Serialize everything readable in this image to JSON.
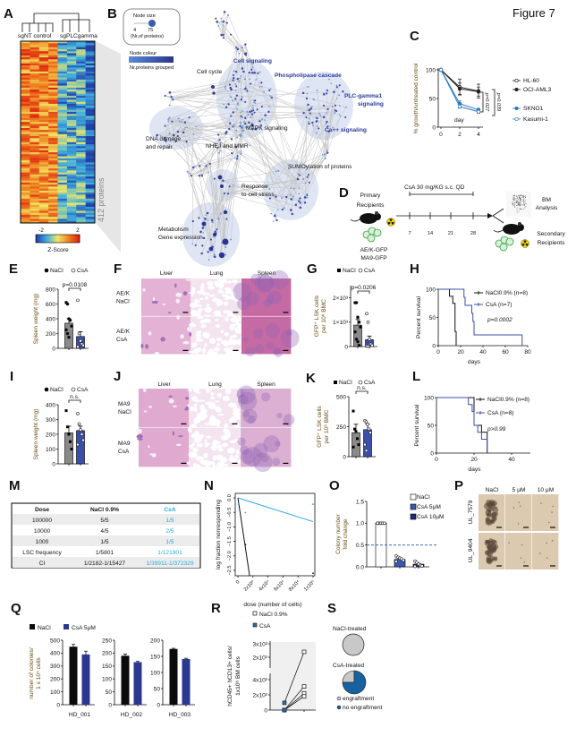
{
  "figure_title": "Figure 7",
  "panel_labels": [
    "A",
    "B",
    "C",
    "D",
    "E",
    "F",
    "G",
    "H",
    "I",
    "J",
    "K",
    "L",
    "M",
    "N",
    "O",
    "P",
    "Q",
    "R",
    "S"
  ],
  "A": {
    "groups": [
      "sgNT control",
      "sgPLCgamma"
    ],
    "side_label": "412 proteins",
    "colorbar": {
      "min": "-2",
      "max": "2",
      "label": "Z-Score"
    }
  },
  "B": {
    "legend": {
      "size_title": "Node size",
      "size_min": "4",
      "size_max": "75",
      "size_caption": "(Nr.of proteins)",
      "colour_title": "Node colour",
      "colour_caption": "Nr.proteins grouped"
    },
    "clusters": [
      {
        "lines": [
          "Cell signaling"
        ],
        "highlight": true
      },
      {
        "lines": [
          "Cell cycle"
        ],
        "highlight": false
      },
      {
        "lines": [
          "Phospholipase cascade"
        ],
        "highlight": true
      },
      {
        "lines": [
          "PLC-gamma1",
          "signaling"
        ],
        "highlight": true
      },
      {
        "lines": [
          "MAPK signaling"
        ],
        "highlight": false
      },
      {
        "lines": [
          "Ca++ signaling"
        ],
        "highlight": true
      },
      {
        "lines": [
          "DNA damage",
          "and repair"
        ],
        "highlight": false
      },
      {
        "lines": [
          "NHEJ and MMR"
        ],
        "highlight": false
      },
      {
        "lines": [
          "SUMOylation of proteins"
        ],
        "highlight": false
      },
      {
        "lines": [
          "Response",
          "to cell stress"
        ],
        "highlight": false
      },
      {
        "lines": [
          "Metabolism",
          "Gene expression"
        ],
        "highlight": false
      }
    ]
  },
  "D": {
    "treatment": "CsA 30 mg/KG s.c. QD",
    "primary": [
      "Primary",
      "Recipients"
    ],
    "days": [
      "7",
      "14",
      "21",
      "28"
    ],
    "bm": [
      "BM",
      "Analysis"
    ],
    "secondary": [
      "Secondary",
      "Recipients"
    ],
    "models": [
      "AE/K-GFP",
      "MA9-GFP"
    ]
  },
  "F": {
    "columns": [
      "Liver",
      "Lung",
      "Spleen"
    ],
    "rows": [
      [
        "AE/K",
        "NaCl"
      ],
      [
        "AE/K",
        "CsA"
      ]
    ]
  },
  "J": {
    "columns": [
      "Liver",
      "Lung",
      "Spleen"
    ],
    "rows": [
      [
        "MA9",
        "NaCl"
      ],
      [
        "MA9",
        "CsA"
      ]
    ]
  },
  "M": {
    "headers": [
      "Dose",
      "NaCl 0.9%",
      "CsA"
    ],
    "rows": [
      [
        "100000",
        "5/5",
        "1/5"
      ],
      [
        "10000",
        "4/5",
        "2/5"
      ],
      [
        "1000",
        "1/5",
        "1/5"
      ],
      [
        "LSC frequency",
        "1/5801",
        "1/121901"
      ],
      [
        "CI",
        "1/2182-1/15427",
        "1/39911-1/372329"
      ]
    ],
    "csa_color": "#29a9e0"
  },
  "P": {
    "columns": [
      "NaCl",
      "5 µM",
      "10 µM"
    ],
    "rows": [
      "UL_7579",
      "UL_9404"
    ]
  },
  "chart_data": [
    {
      "id": "C",
      "type": "line",
      "title": "",
      "xlabel": "day",
      "ylabel": [
        "% growth/untreated control"
      ],
      "x": [
        0,
        2,
        4
      ],
      "xlim": [
        0,
        4
      ],
      "ylim": [
        0,
        100
      ],
      "xticks": [
        0,
        2,
        4
      ],
      "xtick_labels": [
        "0",
        "2",
        "4"
      ],
      "yticks": [
        0,
        50,
        100
      ],
      "ytick_labels": [
        "0",
        "50",
        "100"
      ],
      "series": [
        {
          "name": "HL-60",
          "values": [
            100,
            70,
            63
          ],
          "err": [
            0,
            14,
            12
          ],
          "color": "#222222",
          "marker": "open"
        },
        {
          "name": "OCI-AML3",
          "values": [
            100,
            67,
            62
          ],
          "err": [
            0,
            10,
            8
          ],
          "color": "#222222",
          "marker": "filled"
        },
        {
          "name": "SKNO1",
          "values": [
            100,
            41,
            30
          ],
          "err": [
            0,
            5,
            3
          ],
          "color": "#2a78c0",
          "marker": "filled"
        },
        {
          "name": "Kasumi-1",
          "values": [
            100,
            36,
            27
          ],
          "err": [
            0,
            3,
            3
          ],
          "color": "#2a78c0",
          "marker": "open"
        }
      ],
      "annotations": [
        "p=0.027",
        "p=0.039"
      ]
    },
    {
      "id": "E",
      "type": "bar",
      "ylabel": [
        "Spleen weight (mg)"
      ],
      "ylim": [
        0,
        800
      ],
      "yticks": [
        0,
        200,
        400,
        600,
        800
      ],
      "ytick_labels": [
        "0",
        "200",
        "400",
        "600",
        "800"
      ],
      "annotation": "p=0.0108",
      "series": [
        {
          "name": "NaCl",
          "mean": 340,
          "sem": 60,
          "points": [
            620,
            600,
            400,
            380,
            300,
            250,
            200,
            150
          ],
          "color": "#8a8a8a",
          "point": "filled",
          "legend_marker": "circle-filled"
        },
        {
          "name": "CsA",
          "mean": 160,
          "sem": 65,
          "points": [
            650,
            200,
            100,
            60,
            40,
            20
          ],
          "color": "#3b4fa8",
          "point": "open",
          "legend_marker": "circle-open"
        }
      ]
    },
    {
      "id": "G",
      "type": "bar",
      "ylabel": [
        "GFP⁺ LSK cells",
        "per 10⁶ BMC"
      ],
      "ylim": [
        0,
        2500
      ],
      "yticks": [
        0,
        1000,
        2000
      ],
      "ytick_labels": [
        "0",
        "1×10³",
        "2×10³"
      ],
      "annotation": "p=0.0206",
      "series": [
        {
          "name": "NaCl",
          "mean": 880,
          "sem": 230,
          "points": [
            1800,
            1800,
            1200,
            1000,
            800,
            600,
            300,
            200,
            50
          ],
          "color": "#8a8a8a",
          "point": "filled",
          "legend_marker": "square-filled"
        },
        {
          "name": "CsA",
          "mean": 280,
          "sem": 150,
          "points": [
            1350,
            1000,
            300,
            100,
            50,
            20,
            10
          ],
          "color": "#3b4fa8",
          "point": "open",
          "legend_marker": "circle-open"
        }
      ]
    },
    {
      "id": "H",
      "type": "line",
      "subtype": "survival",
      "xlabel": "days",
      "ylabel": [
        "Percent survival"
      ],
      "xlim": [
        0,
        80
      ],
      "ylim": [
        0,
        100
      ],
      "xticks": [
        0,
        20,
        40,
        60,
        80
      ],
      "xtick_labels": [
        "0",
        "20",
        "40",
        "60",
        "80"
      ],
      "yticks": [
        0,
        50,
        100
      ],
      "ytick_labels": [
        "0",
        "50",
        "100"
      ],
      "annotation": "p=0.0002",
      "series": [
        {
          "name": "NaCl0.9% (n=8)",
          "color": "#111111",
          "steps": [
            [
              0,
              100
            ],
            [
              10,
              87.5
            ],
            [
              13,
              75
            ],
            [
              15,
              25
            ],
            [
              16,
              0
            ]
          ]
        },
        {
          "name": "CsA (n=7)",
          "color": "#3b4fa8",
          "steps": [
            [
              0,
              100
            ],
            [
              23,
              85.7
            ],
            [
              24,
              71.4
            ],
            [
              30,
              57.1
            ],
            [
              31,
              42.9
            ],
            [
              32,
              19
            ],
            [
              75,
              0
            ]
          ]
        }
      ]
    },
    {
      "id": "I",
      "type": "bar",
      "ylabel": [
        "Spleen weight (mg)"
      ],
      "ylim": [
        0,
        400
      ],
      "yticks": [
        0,
        100,
        200,
        300,
        400
      ],
      "ytick_labels": [
        "0",
        "100",
        "200",
        "300",
        "400"
      ],
      "annotation": "n.s.",
      "series": [
        {
          "name": "NaCl",
          "mean": 210,
          "sem": 45,
          "points": [
            360,
            250,
            200,
            150,
            100
          ],
          "color": "#8a8a8a",
          "point": "square",
          "legend_marker": "circle-filled"
        },
        {
          "name": "CsA",
          "mean": 225,
          "sem": 30,
          "points": [
            340,
            270,
            230,
            200,
            160,
            130
          ],
          "color": "#3b4fa8",
          "point": "open",
          "legend_marker": "circle-open"
        }
      ]
    },
    {
      "id": "K",
      "type": "bar",
      "ylabel": [
        "GFP⁺ LSK cells",
        "per 10⁶ BMC"
      ],
      "ylim": [
        0,
        500
      ],
      "yticks": [
        0,
        250,
        500
      ],
      "ytick_labels": [
        "0",
        "250",
        "500"
      ],
      "annotation": "n.s.",
      "series": [
        {
          "name": "NaCl",
          "mean": 200,
          "sem": 70,
          "points": [
            380,
            230,
            210,
            150,
            100,
            80
          ],
          "color": "#8a8a8a",
          "point": "square",
          "legend_marker": "square-filled"
        },
        {
          "name": "CsA",
          "mean": 225,
          "sem": 45,
          "points": [
            300,
            290,
            270,
            230,
            200,
            100,
            50
          ],
          "color": "#3b4fa8",
          "point": "open",
          "legend_marker": "circle-open"
        }
      ]
    },
    {
      "id": "L",
      "type": "line",
      "subtype": "survival",
      "xlabel": "days",
      "ylabel": [
        "Percent survival"
      ],
      "xlim": [
        0,
        50
      ],
      "ylim": [
        0,
        100
      ],
      "xticks": [
        0,
        20,
        40
      ],
      "xtick_labels": [
        "0",
        "20",
        "40"
      ],
      "yticks": [
        0,
        50,
        100
      ],
      "ytick_labels": [
        "0",
        "50",
        "100"
      ],
      "annotation": "p>0.99",
      "series": [
        {
          "name": "NaCl0.9% (n=8)",
          "color": "#111111",
          "steps": [
            [
              0,
              100
            ],
            [
              20,
              50
            ],
            [
              24,
              37.5
            ],
            [
              27,
              0
            ]
          ]
        },
        {
          "name": "CsA (n=8)",
          "color": "#3b4fa8",
          "steps": [
            [
              0,
              100
            ],
            [
              17,
              87.5
            ],
            [
              19,
              75
            ],
            [
              20,
              50
            ],
            [
              22,
              37.5
            ],
            [
              24,
              25
            ],
            [
              27,
              0
            ]
          ]
        }
      ]
    },
    {
      "id": "N",
      "type": "scatter",
      "xlabel": "dose (number of cells)",
      "ylabel": [
        "log fraction nonresponding"
      ],
      "xlim": [
        0,
        100000
      ],
      "ylim": [
        -2.7,
        0.1
      ],
      "xticks": [
        0,
        20000,
        40000,
        60000,
        80000,
        100000
      ],
      "xtick_labels": [
        "0",
        "2x10⁴",
        "4x10⁴",
        "6x10⁴",
        "8x10⁴",
        "1x10⁵"
      ],
      "yticks": [
        0,
        -0.5,
        -1,
        -1.5,
        -2,
        -2.5
      ],
      "ytick_labels": [
        "0.0",
        "−0.5",
        "−1.0",
        "−1.5",
        "−2.0",
        "−2.5"
      ],
      "series": [
        {
          "name": "NaCl 0.9%",
          "frequency": 5801,
          "color": "#111111",
          "points": [
            [
              1000,
              -0.22
            ],
            [
              10000,
              -1.61
            ],
            [
              100000,
              -2.6
            ]
          ]
        },
        {
          "name": "CsA",
          "frequency": 121901,
          "color": "#29a9e0",
          "points": [
            [
              1000,
              -0.22
            ],
            [
              10000,
              -0.51
            ],
            [
              100000,
              -0.22
            ]
          ]
        }
      ]
    },
    {
      "id": "O",
      "type": "bar",
      "ylabel": [
        "Colony number",
        "fold change"
      ],
      "ylim": [
        0,
        1.5
      ],
      "yticks": [
        0,
        0.5,
        1,
        1.5
      ],
      "ytick_labels": [
        "0.0",
        "0.5",
        "1.0",
        "1.5"
      ],
      "threshold": 0.5,
      "series": [
        {
          "name": "NaCl",
          "mean": 1.0,
          "sem": 0,
          "points": [
            1,
            1,
            1,
            1,
            1,
            1
          ],
          "color": "#ffffff",
          "point": "open"
        },
        {
          "name": "CsA 5µM",
          "mean": 0.17,
          "sem": 0.03,
          "points": [
            0.25,
            0.22,
            0.2,
            0.18,
            0.15,
            0.12
          ],
          "color": "#3a58b0",
          "point": "open"
        },
        {
          "name": "CsA 10µM",
          "mean": 0.06,
          "sem": 0.02,
          "points": [
            0.13,
            0.1,
            0.06,
            0.03,
            0.02,
            0.01
          ],
          "color": "#1f2a78",
          "point": "open"
        }
      ]
    },
    {
      "id": "Q",
      "type": "bar",
      "ylabel": [
        "number of colonies/",
        "1 x 10⁵ cells"
      ],
      "series_names": [
        "NaCl",
        "CsA 5µM"
      ],
      "colors": [
        "#0b0b0b",
        "#2b3890"
      ],
      "panels": [
        {
          "title": "HD_001",
          "ylim": [
            0,
            500
          ],
          "yticks": [
            0,
            100,
            200,
            300,
            400,
            500
          ],
          "ytick_labels": [
            "0",
            "100",
            "200",
            "300",
            "400",
            "500"
          ],
          "values": [
            450,
            390
          ],
          "err": [
            18,
            25
          ]
        },
        {
          "title": "HD_002",
          "ylim": [
            0,
            250
          ],
          "yticks": [
            0,
            50,
            100,
            150,
            200,
            250
          ],
          "ytick_labels": [
            "0",
            "50",
            "100",
            "150",
            "200",
            "250"
          ],
          "values": [
            190,
            165
          ],
          "err": [
            6,
            3
          ]
        },
        {
          "title": "HD_003",
          "ylim": [
            0,
            200
          ],
          "yticks": [
            0,
            50,
            100,
            150,
            200
          ],
          "ytick_labels": [
            "0",
            "50",
            "100",
            "150",
            "200"
          ],
          "values": [
            173,
            142
          ],
          "err": [
            2,
            2
          ]
        }
      ]
    },
    {
      "id": "R",
      "type": "scatter",
      "subtype": "paired",
      "ylabel": [
        "hCD45+ hCD13+ cells/",
        "1x10⁶ BM cells"
      ],
      "ytick_values": [
        0,
        200,
        400,
        2000,
        3000
      ],
      "ytick_labels": [
        "0",
        "2x10²",
        "4x10²",
        "2x10³",
        "3x10³"
      ],
      "series": [
        {
          "name": "NaCl 0.9%",
          "values": [
            2400,
            310,
            220,
            180
          ],
          "marker": "open-square"
        },
        {
          "name": "CsA",
          "values": [
            95,
            0,
            0,
            0
          ],
          "marker": "filled-square",
          "color": "#2a6fb0"
        }
      ]
    },
    {
      "id": "S",
      "type": "pie",
      "pies": [
        {
          "title": "NaCl-treated",
          "values": [
            1.0,
            0.0
          ]
        },
        {
          "title": "CsA-treated",
          "values": [
            0.25,
            0.75
          ]
        }
      ],
      "legend": [
        "engraftment",
        "no engraftment"
      ],
      "colors": [
        "#c8c8c8",
        "#16619e"
      ]
    }
  ]
}
